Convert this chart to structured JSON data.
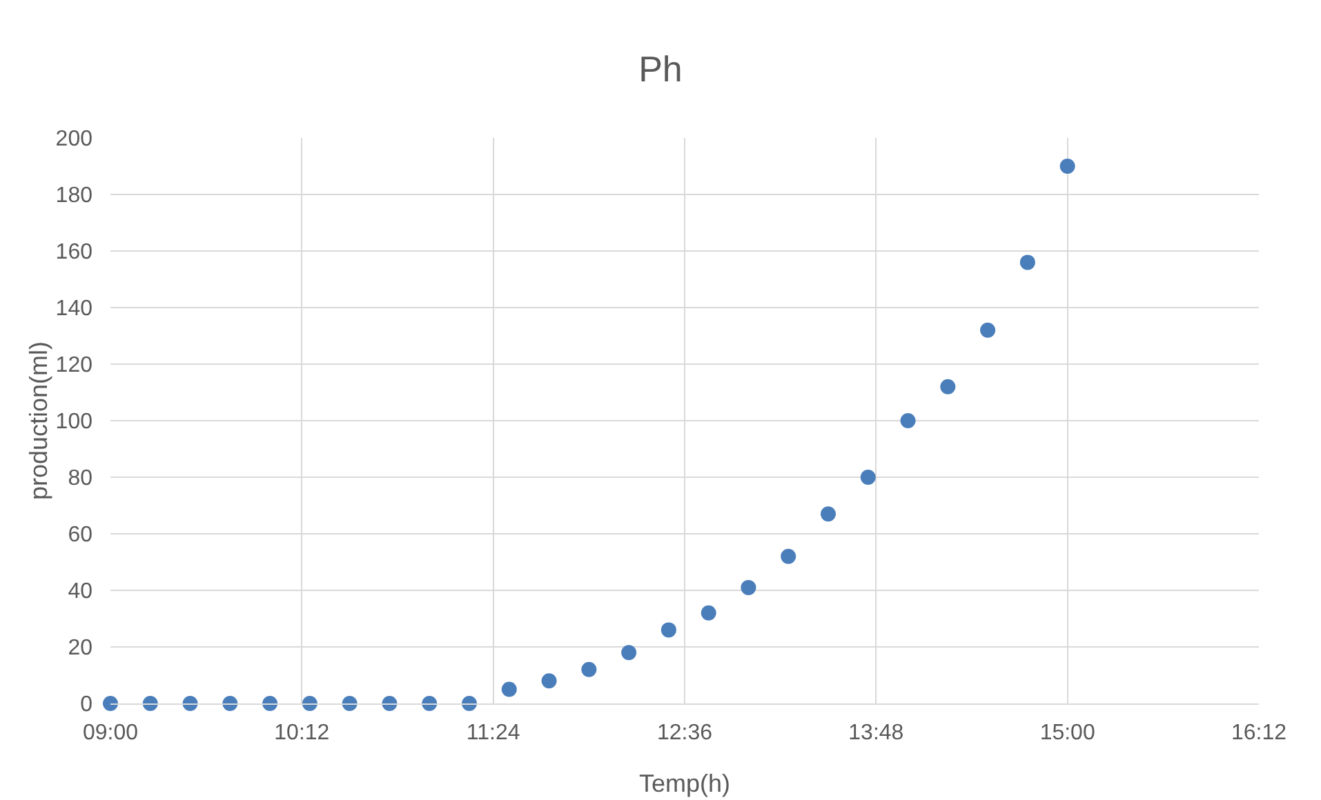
{
  "chart_data": {
    "type": "scatter",
    "title": "Ph",
    "xlabel": "Temp(h)",
    "ylabel": "production(ml)",
    "x": [
      9,
      9.25,
      9.5,
      9.75,
      10,
      10.25,
      10.5,
      10.75,
      11,
      11.25,
      11.5,
      11.75,
      12,
      12.25,
      12.5,
      12.75,
      13,
      13.25,
      13.5,
      13.75,
      14,
      14.25,
      14.5,
      14.75,
      15
    ],
    "series": [
      {
        "color": "#4a7ebb",
        "values": [
          0,
          0,
          0,
          0,
          0,
          0,
          0,
          0,
          0,
          0,
          5,
          8,
          12,
          18,
          26,
          32,
          41,
          52,
          67,
          80,
          100,
          112,
          132,
          156,
          190
        ]
      }
    ],
    "xlim": [
      9,
      16.2
    ],
    "xticks": [
      {
        "value": 9,
        "label": "09:00"
      },
      {
        "value": 10.2,
        "label": "10:12"
      },
      {
        "value": 11.4,
        "label": "11:24"
      },
      {
        "value": 12.6,
        "label": "12:36"
      },
      {
        "value": 13.8,
        "label": "13:48"
      },
      {
        "value": 15,
        "label": "15:00"
      },
      {
        "value": 16.2,
        "label": "16:12"
      }
    ],
    "ylim": [
      0,
      200
    ],
    "yticks": [
      0,
      20,
      40,
      60,
      80,
      100,
      120,
      140,
      160,
      180,
      200
    ],
    "grid": true,
    "marker": "circle"
  }
}
